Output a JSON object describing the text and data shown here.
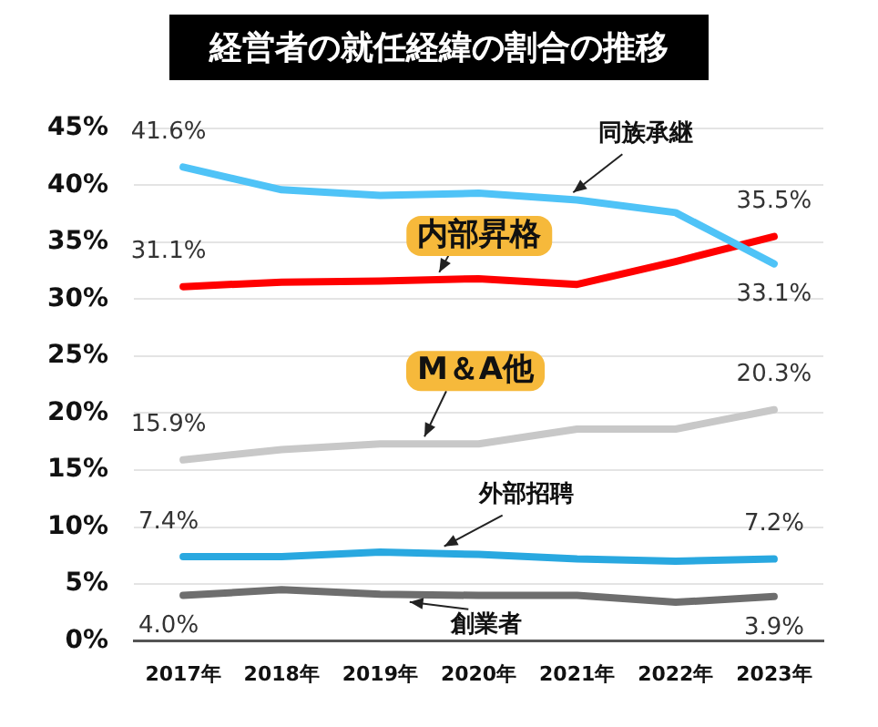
{
  "chart_data": {
    "type": "line",
    "title": "経営者の就任経緯の割合の推移",
    "categories": [
      "2017年",
      "2018年",
      "2019年",
      "2020年",
      "2021年",
      "2022年",
      "2023年"
    ],
    "series": [
      {
        "name": "同族承継",
        "color": "#4fc3f7",
        "values": [
          41.6,
          39.6,
          39.1,
          39.3,
          38.7,
          37.6,
          33.1
        ],
        "value_labels": [
          "41.6%",
          null,
          null,
          null,
          null,
          null,
          "33.1%"
        ]
      },
      {
        "name": "内部昇格",
        "color": "#ff0000",
        "values": [
          31.1,
          31.5,
          31.6,
          31.8,
          31.3,
          33.3,
          35.5
        ],
        "value_labels": [
          "31.1%",
          null,
          null,
          null,
          null,
          null,
          "35.5%"
        ]
      },
      {
        "name": "M＆A他",
        "color": "#c8c8c8",
        "values": [
          15.9,
          16.8,
          17.3,
          17.3,
          18.6,
          18.6,
          20.3
        ],
        "value_labels": [
          "15.9%",
          null,
          null,
          null,
          null,
          null,
          "20.3%"
        ]
      },
      {
        "name": "外部招聘",
        "color": "#29a8e0",
        "values": [
          7.4,
          7.4,
          7.8,
          7.6,
          7.2,
          7.0,
          7.2
        ],
        "value_labels": [
          "7.4%",
          null,
          null,
          null,
          null,
          null,
          "7.2%"
        ]
      },
      {
        "name": "創業者",
        "color": "#6e6e6e",
        "values": [
          4.0,
          4.5,
          4.1,
          4.0,
          4.0,
          3.4,
          3.9
        ],
        "value_labels": [
          "4.0%",
          null,
          null,
          null,
          null,
          null,
          "3.9%"
        ]
      }
    ],
    "ylim": [
      0,
      45
    ],
    "yticks": [
      {
        "value": 0,
        "label": "0%"
      },
      {
        "value": 5,
        "label": "5%"
      },
      {
        "value": 10,
        "label": "10%"
      },
      {
        "value": 15,
        "label": "15%"
      },
      {
        "value": 20,
        "label": "20%"
      },
      {
        "value": 25,
        "label": "25%"
      },
      {
        "value": 30,
        "label": "30%"
      },
      {
        "value": 35,
        "label": "35%"
      },
      {
        "value": 40,
        "label": "40%"
      },
      {
        "value": 45,
        "label": "45%"
      }
    ],
    "grid": "y",
    "legend": false,
    "marker": "none",
    "line_style": "solid"
  }
}
